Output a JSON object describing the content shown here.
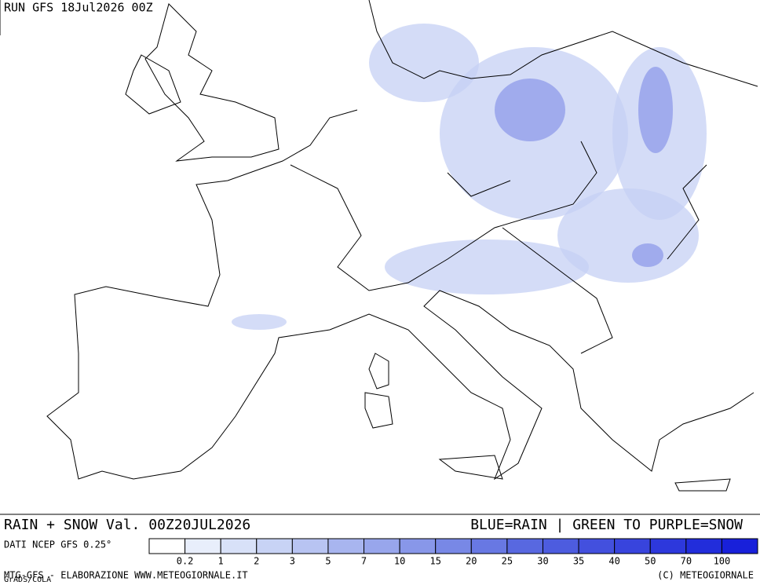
{
  "header": {
    "run": "RUN GFS 18Jul2026 00Z"
  },
  "footer": {
    "title": "RAIN + SNOW Val. 00Z20JUL2026",
    "key": "BLUE=RAIN | GREEN TO PURPLE=SNOW",
    "source": "DATI NCEP GFS 0.25°",
    "credit": "MTG-GFS - ELABORAZIONE WWW.METEOGIORNALE.IT",
    "copyright": "(C) METEOGIORNALE",
    "software": "GrADS/COLA"
  },
  "legend": {
    "ticks": [
      0.2,
      1,
      2,
      3,
      5,
      7,
      10,
      15,
      20,
      25,
      30,
      35,
      40,
      50,
      70,
      100
    ],
    "colors": [
      "#ffffff",
      "#e8eefb",
      "#d8e1f8",
      "#c8d3f5",
      "#b8c4f2",
      "#a8b5ef",
      "#98a6ec",
      "#8897e9",
      "#7888e6",
      "#6878e3",
      "#5868e0",
      "#4d5cdf",
      "#4350de",
      "#3844dd",
      "#2d38dc",
      "#222ddb",
      "#1820da"
    ]
  }
}
